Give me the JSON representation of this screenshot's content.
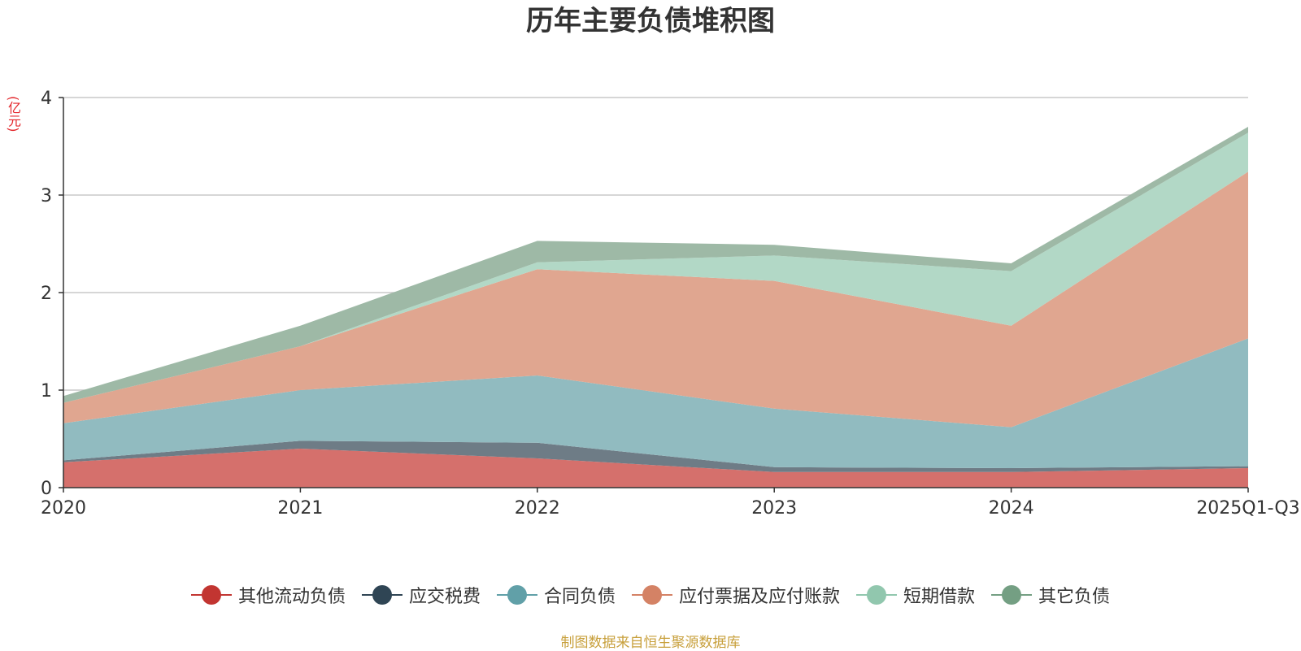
{
  "chart_data": {
    "type": "area",
    "stacked": true,
    "title": "历年主要负债堆积图",
    "ylabel": "(亿元)",
    "xlabel": "",
    "categories": [
      "2020",
      "2021",
      "2022",
      "2023",
      "2024",
      "2025Q1-Q3"
    ],
    "ylim": [
      0,
      4
    ],
    "yticks": [
      0,
      1,
      2,
      3,
      4
    ],
    "grid": true,
    "legend_position": "bottom",
    "series": [
      {
        "name": "其他流动负债",
        "color": "#c23531",
        "fill": "#d5706c",
        "values": [
          0.26,
          0.4,
          0.3,
          0.16,
          0.16,
          0.2
        ]
      },
      {
        "name": "应交税费",
        "color": "#2f4554",
        "fill": "#6e7c86",
        "values": [
          0.02,
          0.08,
          0.16,
          0.05,
          0.04,
          0.02
        ]
      },
      {
        "name": "合同负债",
        "color": "#61a0a8",
        "fill": "#91bbc0",
        "values": [
          0.38,
          0.52,
          0.69,
          0.6,
          0.42,
          1.31
        ]
      },
      {
        "name": "应付票据及应付账款",
        "color": "#d48265",
        "fill": "#e0a690",
        "values": [
          0.21,
          0.45,
          1.09,
          1.31,
          1.04,
          1.71
        ]
      },
      {
        "name": "短期借款",
        "color": "#91c7ae",
        "fill": "#b2d8c6",
        "values": [
          0.0,
          0.0,
          0.07,
          0.26,
          0.56,
          0.4
        ]
      },
      {
        "name": "其它负债",
        "color": "#749f83",
        "fill": "#9eb9a6",
        "values": [
          0.07,
          0.21,
          0.22,
          0.11,
          0.08,
          0.06
        ]
      }
    ]
  },
  "source_note": "制图数据来自恒生聚源数据库"
}
